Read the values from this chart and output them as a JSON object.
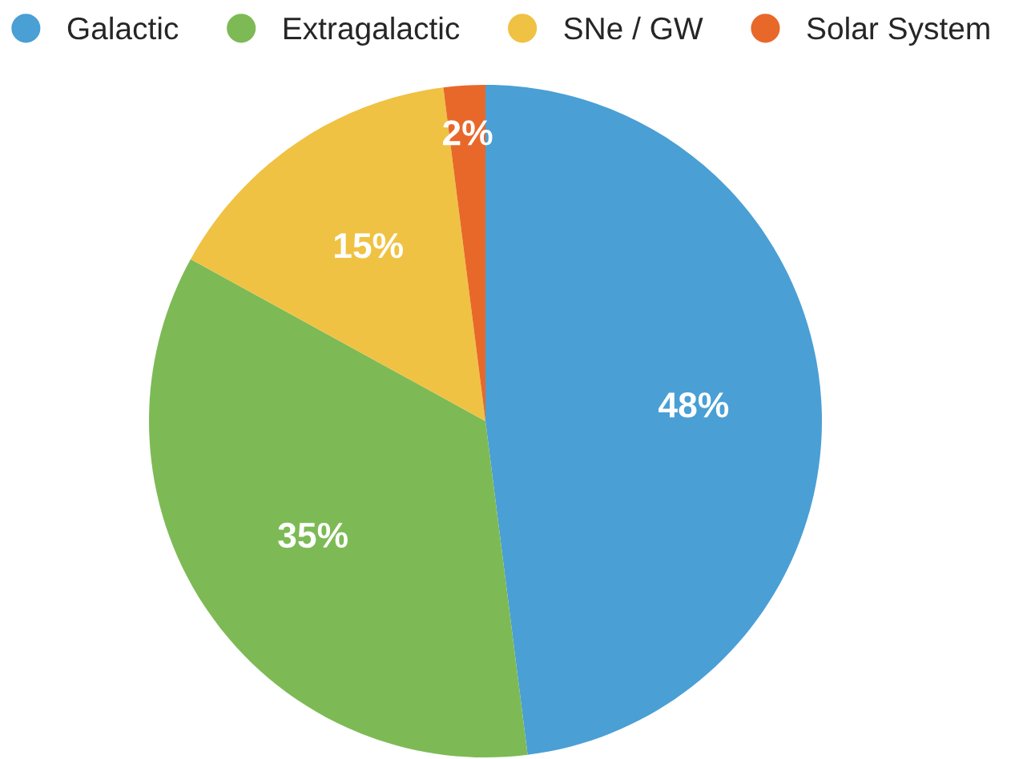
{
  "chart_data": {
    "type": "pie",
    "categories": [
      "Galactic",
      "Extragalactic",
      "SNe / GW",
      "Solar System"
    ],
    "values": [
      48,
      35,
      15,
      2
    ],
    "value_labels": [
      "48%",
      "35%",
      "15%",
      "2%"
    ],
    "colors": [
      "#4a9fd5",
      "#7dba55",
      "#f0c243",
      "#e8682a"
    ],
    "legend": "top"
  }
}
